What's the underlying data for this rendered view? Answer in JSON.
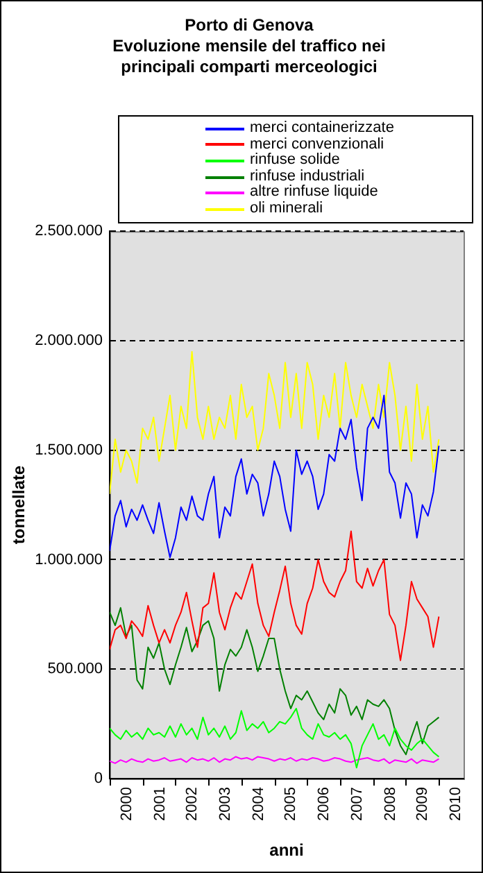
{
  "chart_data": {
    "type": "line",
    "title": "Porto di Genova",
    "subtitle": "Evoluzione mensile del traffico nei principali comparti merceologici",
    "xlabel": "anni",
    "ylabel": "tonnellate",
    "x": [
      2000,
      2000.167,
      2000.333,
      2000.5,
      2000.667,
      2000.833,
      2001,
      2001.167,
      2001.333,
      2001.5,
      2001.667,
      2001.833,
      2002,
      2002.167,
      2002.333,
      2002.5,
      2002.667,
      2002.833,
      2003,
      2003.167,
      2003.333,
      2003.5,
      2003.667,
      2003.833,
      2004,
      2004.167,
      2004.333,
      2004.5,
      2004.667,
      2004.833,
      2005,
      2005.167,
      2005.333,
      2005.5,
      2005.667,
      2005.833,
      2006,
      2006.167,
      2006.333,
      2006.5,
      2006.667,
      2006.833,
      2007,
      2007.167,
      2007.333,
      2007.5,
      2007.667,
      2007.833,
      2008,
      2008.167,
      2008.333,
      2008.5,
      2008.667,
      2008.833,
      2009,
      2009.167,
      2009.333,
      2009.5,
      2009.667,
      2009.833,
      2010
    ],
    "series": [
      {
        "name": "merci containerizzate",
        "color": "#0000ff",
        "values": [
          1040000,
          1200000,
          1270000,
          1150000,
          1230000,
          1180000,
          1250000,
          1180000,
          1120000,
          1260000,
          1130000,
          1010000,
          1100000,
          1240000,
          1180000,
          1290000,
          1200000,
          1180000,
          1300000,
          1380000,
          1100000,
          1240000,
          1200000,
          1380000,
          1460000,
          1300000,
          1390000,
          1350000,
          1200000,
          1300000,
          1450000,
          1380000,
          1230000,
          1130000,
          1500000,
          1390000,
          1450000,
          1380000,
          1230000,
          1300000,
          1480000,
          1450000,
          1600000,
          1550000,
          1640000,
          1420000,
          1270000,
          1600000,
          1650000,
          1600000,
          1750000,
          1400000,
          1350000,
          1190000,
          1350000,
          1300000,
          1100000,
          1250000,
          1200000,
          1310000,
          1520000
        ]
      },
      {
        "name": "merci convenzionali",
        "color": "#ff0000",
        "values": [
          590000,
          680000,
          700000,
          640000,
          720000,
          690000,
          650000,
          790000,
          700000,
          620000,
          680000,
          620000,
          700000,
          760000,
          850000,
          720000,
          600000,
          780000,
          800000,
          940000,
          760000,
          680000,
          780000,
          850000,
          820000,
          900000,
          980000,
          800000,
          700000,
          650000,
          760000,
          860000,
          970000,
          800000,
          700000,
          660000,
          800000,
          870000,
          1000000,
          900000,
          850000,
          830000,
          900000,
          950000,
          1130000,
          900000,
          870000,
          960000,
          880000,
          950000,
          1000000,
          750000,
          700000,
          540000,
          700000,
          900000,
          820000,
          780000,
          740000,
          600000,
          740000
        ]
      },
      {
        "name": "rinfuse solide",
        "color": "#00ff00",
        "values": [
          230000,
          200000,
          180000,
          220000,
          190000,
          210000,
          180000,
          230000,
          200000,
          210000,
          190000,
          240000,
          190000,
          250000,
          200000,
          230000,
          180000,
          280000,
          200000,
          230000,
          190000,
          240000,
          180000,
          210000,
          310000,
          220000,
          250000,
          230000,
          260000,
          210000,
          230000,
          260000,
          250000,
          280000,
          320000,
          230000,
          200000,
          180000,
          250000,
          200000,
          190000,
          210000,
          180000,
          200000,
          160000,
          50000,
          150000,
          200000,
          250000,
          180000,
          200000,
          150000,
          230000,
          180000,
          150000,
          130000,
          160000,
          180000,
          150000,
          120000,
          100000
        ]
      },
      {
        "name": "rinfuse industriali",
        "color": "#008000",
        "values": [
          760000,
          700000,
          780000,
          650000,
          700000,
          450000,
          410000,
          600000,
          550000,
          620000,
          500000,
          430000,
          520000,
          600000,
          690000,
          580000,
          630000,
          700000,
          720000,
          640000,
          400000,
          520000,
          590000,
          560000,
          600000,
          680000,
          600000,
          490000,
          560000,
          640000,
          640000,
          500000,
          400000,
          320000,
          380000,
          360000,
          400000,
          350000,
          300000,
          270000,
          340000,
          300000,
          410000,
          380000,
          290000,
          330000,
          270000,
          360000,
          340000,
          330000,
          360000,
          320000,
          220000,
          150000,
          110000,
          190000,
          260000,
          160000,
          240000,
          260000,
          280000
        ]
      },
      {
        "name": "altre rinfuse liquide",
        "color": "#ff00ff",
        "values": [
          80000,
          70000,
          85000,
          75000,
          90000,
          80000,
          75000,
          90000,
          80000,
          85000,
          95000,
          80000,
          85000,
          90000,
          75000,
          95000,
          85000,
          90000,
          80000,
          95000,
          75000,
          90000,
          85000,
          100000,
          90000,
          95000,
          85000,
          100000,
          95000,
          90000,
          80000,
          90000,
          85000,
          95000,
          80000,
          90000,
          85000,
          95000,
          90000,
          80000,
          85000,
          95000,
          90000,
          80000,
          75000,
          85000,
          90000,
          95000,
          85000,
          80000,
          90000,
          70000,
          85000,
          80000,
          75000,
          90000,
          70000,
          85000,
          80000,
          75000,
          90000
        ]
      },
      {
        "name": "oli minerali",
        "color": "#ffff00",
        "values": [
          1300000,
          1550000,
          1400000,
          1500000,
          1450000,
          1350000,
          1600000,
          1550000,
          1650000,
          1450000,
          1600000,
          1750000,
          1500000,
          1700000,
          1600000,
          1950000,
          1650000,
          1550000,
          1700000,
          1550000,
          1650000,
          1600000,
          1750000,
          1550000,
          1800000,
          1650000,
          1700000,
          1500000,
          1600000,
          1850000,
          1750000,
          1600000,
          1900000,
          1650000,
          1850000,
          1600000,
          1900000,
          1800000,
          1550000,
          1750000,
          1650000,
          1850000,
          1600000,
          1900000,
          1750000,
          1650000,
          1800000,
          1700000,
          1600000,
          1800000,
          1650000,
          1900000,
          1750000,
          1500000,
          1700000,
          1450000,
          1800000,
          1550000,
          1700000,
          1400000,
          1550000
        ]
      }
    ],
    "xlim": [
      2000,
      2010.75
    ],
    "xticks": [
      {
        "value": 2000,
        "label": null
      },
      {
        "value": 2000.5,
        "label": "2000"
      },
      {
        "value": 2001,
        "label": null
      },
      {
        "value": 2001.5,
        "label": "2001"
      },
      {
        "value": 2002,
        "label": null
      },
      {
        "value": 2002.5,
        "label": "2002"
      },
      {
        "value": 2003,
        "label": null
      },
      {
        "value": 2003.5,
        "label": "2003"
      },
      {
        "value": 2004,
        "label": null
      },
      {
        "value": 2004.5,
        "label": "2004"
      },
      {
        "value": 2005,
        "label": null
      },
      {
        "value": 2005.5,
        "label": "2005"
      },
      {
        "value": 2006,
        "label": null
      },
      {
        "value": 2006.5,
        "label": "2006"
      },
      {
        "value": 2007,
        "label": null
      },
      {
        "value": 2007.5,
        "label": "2007"
      },
      {
        "value": 2008,
        "label": null
      },
      {
        "value": 2008.5,
        "label": "2008"
      },
      {
        "value": 2009,
        "label": null
      },
      {
        "value": 2009.5,
        "label": "2009"
      },
      {
        "value": 2010,
        "label": null
      },
      {
        "value": 2010.5,
        "label": "2010"
      }
    ],
    "ylim": [
      0,
      2500000
    ],
    "yticks": [
      0,
      {
        "value": 500000,
        "label": "500.000"
      },
      {
        "value": 1000000,
        "label": "1.000.000"
      },
      {
        "value": 1500000,
        "label": "1.500.000"
      },
      {
        "value": 2000000,
        "label": "2.000.000"
      },
      {
        "value": 2500000,
        "label": "2.500.000"
      }
    ],
    "grid": "y",
    "legend": "top",
    "marker": "none",
    "line_style": "solid"
  }
}
